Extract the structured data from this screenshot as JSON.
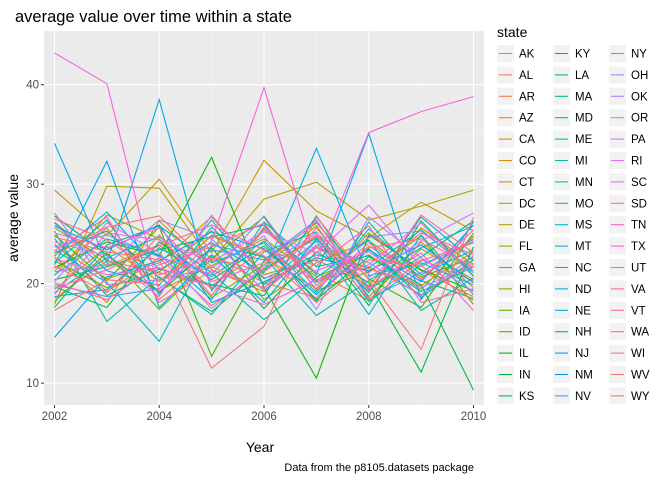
{
  "chart_data": {
    "type": "line",
    "title": "average value over time within a state",
    "xlabel": "Year",
    "ylabel": "average value",
    "caption": "Data from the p8105.datasets package",
    "legend_title": "state",
    "legend_position": "right",
    "grid": true,
    "background": "#ebebeb",
    "xlim": [
      2001.8,
      2010.2
    ],
    "ylim": [
      7.8,
      45.4
    ],
    "x_ticks": [
      2002,
      2004,
      2006,
      2008,
      2010
    ],
    "y_ticks": [
      10,
      20,
      30,
      40
    ],
    "series_note": "approximate per-state yearly averages (one line per state, 2002-2010); vertical segments where a state has several locations in a year",
    "series": [
      {
        "name": "AK",
        "color": "#F8766D",
        "values": [
          18.5,
          22.3,
          21.1,
          19.8,
          23.4,
          20.2,
          21.7,
          18.9,
          22.1
        ]
      },
      {
        "name": "AL",
        "color": "#F47B5D",
        "values": [
          24.0,
          19.2,
          22.6,
          17.8,
          21.3,
          24.9,
          19.7,
          22.4,
          20.3
        ]
      },
      {
        "name": "AR",
        "color": "#EF7F4C",
        "values": [
          21.3,
          25.6,
          18.4,
          22.9,
          20.1,
          18.6,
          23.8,
          20.5,
          24.7
        ]
      },
      {
        "name": "AZ",
        "color": "#E88526",
        "values": [
          26.2,
          21.8,
          23.9,
          19.5,
          25.4,
          21.1,
          18.3,
          24.2,
          19.6
        ]
      },
      {
        "name": "CA",
        "color": "#DE8C00",
        "values": [
          22.7,
          18.1,
          26.3,
          21.4,
          19.2,
          23.7,
          21.5,
          19.8,
          23.2
        ]
      },
      {
        "name": "CO",
        "color": "#D49200",
        "values": [
          19.4,
          23.7,
          20.2,
          24.8,
          22.6,
          19.5,
          25.1,
          21.3,
          18.7
        ]
      },
      {
        "name": "CT",
        "color": "#C99800",
        "values": [
          29.4,
          24.8,
          30.5,
          23.1,
          32.4,
          27.3,
          24.6,
          28.2,
          25.3
        ]
      },
      {
        "name": "DC",
        "color": "#BC9D00",
        "values": [
          23.8,
          20.5,
          22.1,
          26.7,
          20.9,
          22.4,
          19.8,
          25.6,
          21.9
        ]
      },
      {
        "name": "DE",
        "color": "#AEA200",
        "values": [
          17.9,
          29.8,
          29.6,
          22.3,
          28.5,
          30.2,
          26.4,
          27.8,
          29.4
        ]
      },
      {
        "name": "FL",
        "color": "#9FA700",
        "values": [
          25.6,
          22.4,
          19.3,
          21.8,
          24.5,
          20.7,
          22.9,
          19.4,
          24.8
        ]
      },
      {
        "name": "GA",
        "color": "#8EAB00",
        "values": [
          20.8,
          26.9,
          24.5,
          18.6,
          21.9,
          25.8,
          18.7,
          23.5,
          20.4
        ]
      },
      {
        "name": "HI",
        "color": "#7AAF00",
        "values": [
          22.3,
          19.6,
          21.2,
          25.3,
          18.4,
          22.1,
          24.3,
          20.7,
          22.6
        ]
      },
      {
        "name": "IA",
        "color": "#64B200",
        "values": [
          18.2,
          23.1,
          17.4,
          22.5,
          26.7,
          19.3,
          21.2,
          24.8,
          17.9
        ]
      },
      {
        "name": "ID",
        "color": "#49B500",
        "values": [
          24.9,
          20.3,
          25.7,
          12.7,
          22.3,
          26.1,
          20.5,
          17.6,
          25.1
        ]
      },
      {
        "name": "IL",
        "color": "#0CB702",
        "values": [
          21.6,
          24.2,
          22.8,
          32.7,
          19.6,
          10.5,
          24.9,
          21.4,
          19.3
        ]
      },
      {
        "name": "IN",
        "color": "#00B935",
        "values": [
          26.8,
          22.9,
          19.1,
          23.6,
          17.5,
          23.2,
          20.1,
          11.1,
          23.7
        ]
      },
      {
        "name": "KS",
        "color": "#00BA4C",
        "values": [
          19.7,
          17.6,
          24.2,
          20.4,
          23.8,
          18.4,
          22.7,
          19.9,
          9.3
        ]
      },
      {
        "name": "KY",
        "color": "#00BB60",
        "values": [
          23.1,
          25.3,
          20.6,
          17.2,
          21.5,
          24.6,
          17.8,
          26.3,
          20.8
        ]
      },
      {
        "name": "LA",
        "color": "#00BC70",
        "values": [
          20.4,
          21.7,
          23.4,
          24.7,
          25.9,
          20.3,
          23.5,
          18.6,
          22.4
        ]
      },
      {
        "name": "MA",
        "color": "#00BC7F",
        "values": [
          24.5,
          18.8,
          21.5,
          19.9,
          18.8,
          26.8,
          19.4,
          22.7,
          26.3
        ]
      },
      {
        "name": "MD",
        "color": "#00BD8D",
        "values": [
          17.6,
          23.9,
          25.8,
          22.1,
          24.1,
          18.2,
          26.2,
          20.3,
          18.5
        ]
      },
      {
        "name": "ME",
        "color": "#00BE99",
        "values": [
          22.1,
          26.4,
          18.9,
          25.7,
          20.5,
          22.9,
          21.6,
          25.4,
          21.1
        ]
      },
      {
        "name": "MI",
        "color": "#00BEA5",
        "values": [
          25.3,
          16.2,
          20.7,
          16.9,
          23.2,
          25.2,
          18.2,
          21.9,
          24.2
        ]
      },
      {
        "name": "MN",
        "color": "#00BDB0",
        "values": [
          19.1,
          22.6,
          24.7,
          21.1,
          16.4,
          20.6,
          24.4,
          17.3,
          20.6
        ]
      },
      {
        "name": "MO",
        "color": "#00BCBB",
        "values": [
          23.4,
          20.1,
          14.2,
          23.9,
          22.7,
          16.8,
          20.3,
          23.6,
          25.8
        ]
      },
      {
        "name": "MS",
        "color": "#00BAC5",
        "values": [
          20.9,
          24.5,
          22.9,
          18.4,
          26.2,
          21.7,
          22.8,
          19.2,
          21.7
        ]
      },
      {
        "name": "MT",
        "color": "#00B7CF",
        "values": [
          26.1,
          21.3,
          19.8,
          26.4,
          19.9,
          24.3,
          16.9,
          24.9,
          18.9
        ]
      },
      {
        "name": "NC",
        "color": "#00B4D8",
        "values": [
          18.7,
          19.4,
          23.6,
          20.7,
          24.3,
          19.1,
          25.5,
          20.9,
          23.4
        ]
      },
      {
        "name": "ND",
        "color": "#00B0E0",
        "values": [
          22.8,
          27.2,
          21.4,
          24.1,
          21.1,
          33.6,
          20.8,
          22.1,
          19.9
        ]
      },
      {
        "name": "NE",
        "color": "#00ABE8",
        "values": [
          34.1,
          22.1,
          38.5,
          19.3,
          25.6,
          20.9,
          35.1,
          18.4,
          26.2
        ]
      },
      {
        "name": "NH",
        "color": "#00A5EF",
        "values": [
          21.9,
          32.3,
          17.6,
          22.8,
          18.1,
          24.5,
          19.1,
          26.7,
          22.3
        ]
      },
      {
        "name": "NJ",
        "color": "#00A0F6",
        "values": [
          14.6,
          20.7,
          22.3,
          25.2,
          23.5,
          18.9,
          23.4,
          20.2,
          25.9
        ]
      },
      {
        "name": "NM",
        "color": "#009AFB",
        "values": [
          25.8,
          23.4,
          25.9,
          18.1,
          20.2,
          22.6,
          21.3,
          23.9,
          20.1
        ]
      },
      {
        "name": "NV",
        "color": "#4A93FF",
        "values": [
          19.9,
          18.7,
          19.5,
          23.4,
          22.4,
          26.4,
          18.5,
          21.1,
          24.5
        ]
      },
      {
        "name": "NY",
        "color": "#7C8CFF",
        "values": [
          23.7,
          24.9,
          22.7,
          20.9,
          26.8,
          19.8,
          24.7,
          25.3,
          21.3
        ]
      },
      {
        "name": "OH",
        "color": "#9A86FF",
        "values": [
          21.2,
          21.9,
          26.4,
          24.5,
          19.3,
          23.9,
          22.1,
          18.8,
          22.8
        ]
      },
      {
        "name": "OK",
        "color": "#B37FFF",
        "values": [
          27.1,
          19.9,
          20.4,
          21.6,
          24.8,
          17.4,
          26.7,
          22.6,
          19.2
        ]
      },
      {
        "name": "OR",
        "color": "#C77CFF",
        "values": [
          20.2,
          26.1,
          23.1,
          17.5,
          21.7,
          25.1,
          20.6,
          24.3,
          27.1
        ]
      },
      {
        "name": "PA",
        "color": "#D775FE",
        "values": [
          24.2,
          22.8,
          18.7,
          26.9,
          20.6,
          21.3,
          23.2,
          19.6,
          21.8
        ]
      },
      {
        "name": "RI",
        "color": "#E46DF6",
        "values": [
          18.9,
          25.1,
          24.4,
          22.2,
          25.2,
          23.1,
          27.9,
          21.7,
          24.4
        ]
      },
      {
        "name": "SC",
        "color": "#EF67EB",
        "values": [
          22.5,
          20.9,
          21.6,
          19.7,
          17.9,
          20.4,
          21.9,
          26.1,
          20.7
        ]
      },
      {
        "name": "SD",
        "color": "#F763E0",
        "values": [
          43.2,
          40.1,
          19.2,
          24.3,
          39.7,
          22.2,
          35.2,
          37.3,
          38.8
        ]
      },
      {
        "name": "TN",
        "color": "#FD61D1",
        "values": [
          25.1,
          23.6,
          25.6,
          20.2,
          22.1,
          26.2,
          19.6,
          23.1,
          17.3
        ]
      },
      {
        "name": "TX",
        "color": "#FF61C3",
        "values": [
          20.1,
          18.4,
          21.9,
          23.7,
          26.1,
          19.4,
          24.1,
          20.4,
          25.4
        ]
      },
      {
        "name": "UT",
        "color": "#FF63B3",
        "values": [
          23.3,
          26.7,
          18.1,
          21.3,
          19.6,
          23.6,
          21.1,
          25.1,
          22.9
        ]
      },
      {
        "name": "VA",
        "color": "#FF67A4",
        "values": [
          19.5,
          21.4,
          23.8,
          25.9,
          23.4,
          21.8,
          25.8,
          18.1,
          19.5
        ]
      },
      {
        "name": "VT",
        "color": "#FF6C92",
        "values": [
          26.5,
          24.4,
          20.9,
          22.6,
          21.2,
          24.8,
          18.4,
          22.3,
          24.1
        ]
      },
      {
        "name": "WA",
        "color": "#FE6E86",
        "values": [
          21.8,
          19.1,
          24.9,
          18.8,
          25.7,
          20.1,
          23.6,
          24.5,
          21.6
        ]
      },
      {
        "name": "WI",
        "color": "#FA7479",
        "values": [
          24.7,
          23.2,
          22.4,
          11.5,
          15.7,
          26.7,
          20.4,
          13.4,
          26.7
        ]
      },
      {
        "name": "WV",
        "color": "#F57A6D",
        "values": [
          17.3,
          20.4,
          19.9,
          24.9,
          22.8,
          18.1,
          22.4,
          21.8,
          18.3
        ]
      },
      {
        "name": "WY",
        "color": "#F8766D",
        "values": [
          22.9,
          25.7,
          26.8,
          21.7,
          19.5,
          25.6,
          19.2,
          26.9,
          23.1
        ]
      }
    ],
    "x": [
      2002,
      2003,
      2004,
      2005,
      2006,
      2007,
      2008,
      2009,
      2010
    ]
  }
}
